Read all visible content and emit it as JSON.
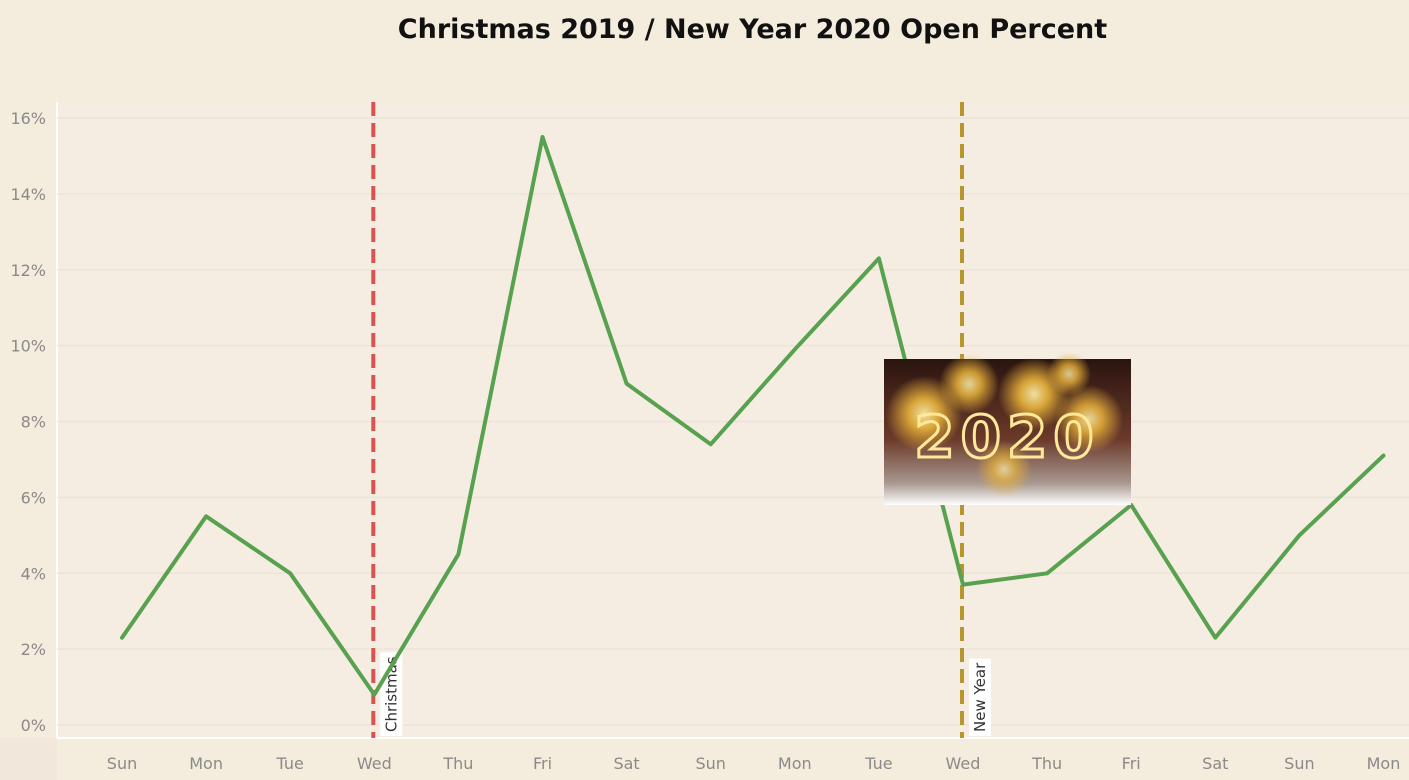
{
  "chart_data": {
    "type": "line",
    "title": "Christmas 2019 / New Year 2020 Open Percent",
    "x": [
      "Sun",
      "Mon",
      "Tue",
      "Wed",
      "Thu",
      "Fri",
      "Sat",
      "Sun",
      "Mon",
      "Tue",
      "Wed",
      "Thu",
      "Fri",
      "Sat",
      "Sun",
      "Mon"
    ],
    "series": [
      {
        "values": [
          2.3,
          5.5,
          4.0,
          0.8,
          4.5,
          15.5,
          9.0,
          7.4,
          9.9,
          12.3,
          3.7,
          4.0,
          5.8,
          2.3,
          5.0,
          7.1
        ]
      }
    ],
    "ylim": [
      0,
      16
    ],
    "yticks": [
      "0%",
      "2%",
      "4%",
      "6%",
      "8%",
      "10%",
      "12%",
      "14%",
      "16%"
    ],
    "grid": true,
    "line_color": "#58a14e",
    "annotations": [
      {
        "label": "Christmas",
        "x_index": 3,
        "color": "#d9534f",
        "style": "dashed"
      },
      {
        "label": "New Year",
        "x_index": 10,
        "color": "#b8962e",
        "style": "dashed"
      }
    ],
    "image": {
      "label": "2020"
    }
  }
}
